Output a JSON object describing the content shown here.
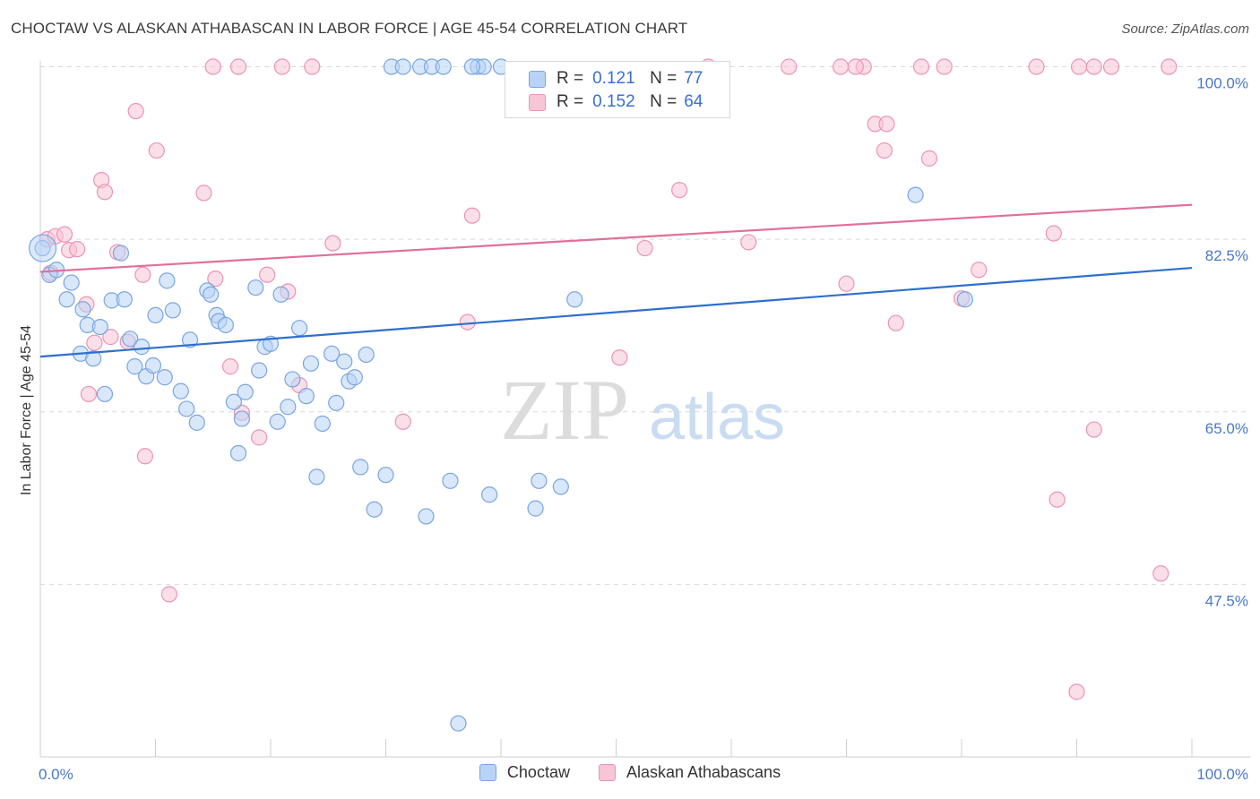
{
  "title": "CHOCTAW VS ALASKAN ATHABASCAN IN LABOR FORCE | AGE 45-54 CORRELATION CHART",
  "source": "Source: ZipAtlas.com",
  "watermark": {
    "zip": "ZIP",
    "atlas": "atlas"
  },
  "colors": {
    "blue_fill": "#b8d3f5",
    "blue_stroke": "#7aa5e0",
    "blue_line": "#2e6fcf",
    "pink_fill": "#f7c5d5",
    "pink_stroke": "#eb94b2",
    "pink_line": "#e0709a",
    "tick_text": "#4a78c8",
    "grid": "#d9d9d9"
  },
  "legend": {
    "r_label": "R =",
    "n_label": "N =",
    "rows": [
      {
        "series": "Choctaw",
        "r": "0.121",
        "n": "77"
      },
      {
        "series": "Alaskan Athabascans",
        "r": "0.152",
        "n": "64"
      }
    ]
  },
  "bottom_legend": [
    "Choctaw",
    "Alaskan Athabascans"
  ],
  "chart_data": {
    "type": "scatter",
    "title": "CHOCTAW VS ALASKAN ATHABASCAN IN LABOR FORCE | AGE 45-54 CORRELATION CHART",
    "xlabel": "",
    "ylabel": "In Labor Force | Age 45-54",
    "xlim": [
      0,
      100
    ],
    "ylim": [
      30,
      101.5
    ],
    "x_tick_labels": [
      "0.0%",
      "100.0%"
    ],
    "y_ticks": [
      47.5,
      65.0,
      82.5,
      100.0
    ],
    "y_tick_labels": [
      "47.5%",
      "65.0%",
      "82.5%",
      "100.0%"
    ],
    "series": [
      {
        "name": "Choctaw",
        "trend": {
          "x": [
            0,
            100
          ],
          "y": [
            70.6,
            79.6
          ]
        },
        "points": [
          [
            0.2,
            81.6
          ],
          [
            0.8,
            78.9
          ],
          [
            1.4,
            79.4
          ],
          [
            2.3,
            76.4
          ],
          [
            2.7,
            78.1
          ],
          [
            3.7,
            75.4
          ],
          [
            4.1,
            73.8
          ],
          [
            3.5,
            70.9
          ],
          [
            4.6,
            70.4
          ],
          [
            5.2,
            73.6
          ],
          [
            5.6,
            66.8
          ],
          [
            6.2,
            76.3
          ],
          [
            7.0,
            81.1
          ],
          [
            7.3,
            76.4
          ],
          [
            7.8,
            72.4
          ],
          [
            8.2,
            69.6
          ],
          [
            8.8,
            71.6
          ],
          [
            9.2,
            68.6
          ],
          [
            9.8,
            69.7
          ],
          [
            10.0,
            74.8
          ],
          [
            10.8,
            68.5
          ],
          [
            11.0,
            78.3
          ],
          [
            11.5,
            75.3
          ],
          [
            12.2,
            67.1
          ],
          [
            12.7,
            65.3
          ],
          [
            13.0,
            72.3
          ],
          [
            13.6,
            63.9
          ],
          [
            14.5,
            77.3
          ],
          [
            14.8,
            76.9
          ],
          [
            15.3,
            74.8
          ],
          [
            15.5,
            74.2
          ],
          [
            16.1,
            73.8
          ],
          [
            16.8,
            66.0
          ],
          [
            17.2,
            60.8
          ],
          [
            17.5,
            64.3
          ],
          [
            17.8,
            67.0
          ],
          [
            18.7,
            77.6
          ],
          [
            19.0,
            69.2
          ],
          [
            19.5,
            71.6
          ],
          [
            20.0,
            71.9
          ],
          [
            20.6,
            64.0
          ],
          [
            20.9,
            76.9
          ],
          [
            21.5,
            65.5
          ],
          [
            21.9,
            68.3
          ],
          [
            22.5,
            73.5
          ],
          [
            23.1,
            66.6
          ],
          [
            23.5,
            69.9
          ],
          [
            24.0,
            58.4
          ],
          [
            24.5,
            63.8
          ],
          [
            25.3,
            70.9
          ],
          [
            25.7,
            65.9
          ],
          [
            26.4,
            70.1
          ],
          [
            26.8,
            68.1
          ],
          [
            27.3,
            68.5
          ],
          [
            27.8,
            59.4
          ],
          [
            28.3,
            70.8
          ],
          [
            29.0,
            55.1
          ],
          [
            30.0,
            58.6
          ],
          [
            30.5,
            100.0
          ],
          [
            31.5,
            100.0
          ],
          [
            33.0,
            100.0
          ],
          [
            33.5,
            54.4
          ],
          [
            34.0,
            100.0
          ],
          [
            35.0,
            100.0
          ],
          [
            35.6,
            58.0
          ],
          [
            36.3,
            33.4
          ],
          [
            38.0,
            100.0
          ],
          [
            38.5,
            100.0
          ],
          [
            39.0,
            56.6
          ],
          [
            40.0,
            100.0
          ],
          [
            37.5,
            100.0
          ],
          [
            43.0,
            55.2
          ],
          [
            43.3,
            58.0
          ],
          [
            45.2,
            57.4
          ],
          [
            46.4,
            76.4
          ],
          [
            76.0,
            87.0
          ],
          [
            80.3,
            76.4
          ]
        ]
      },
      {
        "name": "Alaskan Athabascans",
        "trend": {
          "x": [
            0,
            100
          ],
          "y": [
            79.2,
            86.0
          ]
        },
        "points": [
          [
            0.6,
            82.5
          ],
          [
            0.9,
            79.1
          ],
          [
            1.3,
            82.8
          ],
          [
            2.1,
            83.0
          ],
          [
            2.5,
            81.4
          ],
          [
            3.2,
            81.5
          ],
          [
            4.0,
            75.9
          ],
          [
            4.2,
            66.8
          ],
          [
            4.7,
            72.0
          ],
          [
            5.3,
            88.5
          ],
          [
            5.6,
            87.3
          ],
          [
            6.1,
            72.6
          ],
          [
            6.7,
            81.2
          ],
          [
            7.6,
            72.1
          ],
          [
            8.3,
            95.5
          ],
          [
            8.9,
            78.9
          ],
          [
            9.1,
            60.5
          ],
          [
            10.1,
            91.5
          ],
          [
            11.2,
            46.5
          ],
          [
            14.2,
            87.2
          ],
          [
            15.0,
            100.0
          ],
          [
            15.2,
            78.5
          ],
          [
            16.5,
            69.6
          ],
          [
            17.2,
            100.0
          ],
          [
            17.5,
            64.9
          ],
          [
            19.0,
            62.4
          ],
          [
            19.7,
            78.9
          ],
          [
            21.0,
            100.0
          ],
          [
            21.5,
            77.2
          ],
          [
            22.5,
            67.7
          ],
          [
            23.6,
            100.0
          ],
          [
            25.4,
            82.1
          ],
          [
            31.5,
            64.0
          ],
          [
            37.1,
            74.1
          ],
          [
            37.5,
            84.9
          ],
          [
            50.3,
            70.5
          ],
          [
            52.5,
            81.6
          ],
          [
            55.5,
            87.5
          ],
          [
            58.0,
            100.0
          ],
          [
            61.5,
            82.2
          ],
          [
            65.0,
            100.0
          ],
          [
            70.0,
            78.0
          ],
          [
            71.5,
            100.0
          ],
          [
            72.5,
            94.2
          ],
          [
            73.3,
            91.5
          ],
          [
            73.5,
            94.2
          ],
          [
            74.3,
            74.0
          ],
          [
            76.5,
            100.0
          ],
          [
            77.2,
            90.7
          ],
          [
            78.5,
            100.0
          ],
          [
            80.0,
            76.5
          ],
          [
            81.5,
            79.4
          ],
          [
            86.5,
            100.0
          ],
          [
            88.0,
            83.1
          ],
          [
            88.3,
            56.1
          ],
          [
            90.2,
            100.0
          ],
          [
            91.5,
            100.0
          ],
          [
            90.0,
            36.6
          ],
          [
            91.5,
            63.2
          ],
          [
            93.0,
            100.0
          ],
          [
            97.3,
            48.6
          ],
          [
            98.0,
            100.0
          ],
          [
            70.8,
            100.0
          ],
          [
            69.5,
            100.0
          ]
        ]
      }
    ]
  }
}
